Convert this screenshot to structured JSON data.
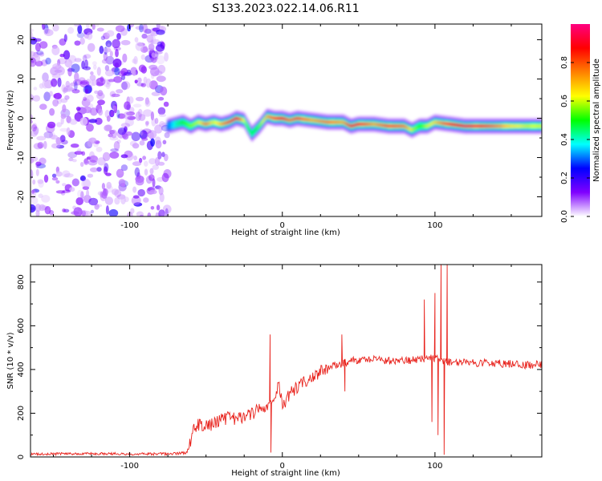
{
  "title": "S133.2023.022.14.06.R11",
  "chart_data": [
    {
      "type": "heatmap",
      "xlabel": "Height of straight line (km)",
      "ylabel": "Frequency (Hz)",
      "xlim": [
        -165,
        170
      ],
      "ylim": [
        -25,
        24
      ],
      "xticks": [
        -100,
        0,
        100
      ],
      "yticks": [
        -20,
        -10,
        0,
        10,
        20
      ],
      "colorbar": {
        "label": "Normalized spectral amplitude",
        "range": [
          0,
          1
        ],
        "ticks": [
          0.0,
          0.2,
          0.4,
          0.6,
          0.8
        ],
        "tick_labels": [
          "0.0",
          "0.2",
          "0.4",
          "0.6",
          "0.8"
        ],
        "colormap": [
          "#ffffff",
          "#8000ff",
          "#0000ff",
          "#00ffff",
          "#00ff00",
          "#ffff00",
          "#ff8000",
          "#ff0000",
          "#ff0080"
        ]
      },
      "noise_region": {
        "x_range": [
          -165,
          -75
        ],
        "y_range": [
          -25,
          24
        ],
        "amplitude": 0.2
      },
      "ridge": {
        "x": [
          -75,
          -70,
          -65,
          -60,
          -55,
          -50,
          -45,
          -40,
          -35,
          -30,
          -25,
          -20,
          -15,
          -10,
          -5,
          0,
          5,
          10,
          20,
          30,
          40,
          45,
          50,
          60,
          70,
          80,
          85,
          90,
          95,
          100,
          110,
          120,
          130,
          140,
          150,
          160,
          170
        ],
        "frequency": [
          -2,
          -1.5,
          -1,
          -2,
          -1,
          -1.5,
          -1,
          -1.5,
          -1,
          0,
          -0.5,
          -4,
          -2,
          0.5,
          0,
          0,
          -0.5,
          0,
          -0.5,
          -1,
          -1,
          -2,
          -1.5,
          -1.5,
          -2,
          -2,
          -3,
          -2,
          -2,
          -1,
          -1.5,
          -2,
          -2,
          -2,
          -2,
          -2,
          -2
        ],
        "amplitude": [
          0.3,
          0.4,
          0.5,
          0.55,
          0.6,
          0.75,
          0.6,
          0.7,
          0.8,
          0.9,
          0.6,
          0.45,
          0.55,
          0.7,
          0.8,
          0.85,
          0.75,
          0.8,
          0.7,
          0.75,
          0.7,
          0.85,
          0.85,
          0.7,
          0.8,
          0.75,
          0.6,
          0.5,
          0.6,
          0.65,
          0.85,
          0.9,
          0.85,
          0.75,
          0.65,
          0.6,
          0.6
        ]
      }
    },
    {
      "type": "line",
      "xlabel": "Height of straight line (km)",
      "ylabel": "SNR (10 * v/v)",
      "xlim": [
        -165,
        170
      ],
      "ylim": [
        0,
        880
      ],
      "xticks": [
        -100,
        0,
        100
      ],
      "yticks": [
        0,
        200,
        400,
        600,
        800
      ],
      "series": [
        {
          "color": "#e8221c",
          "x": [
            -165,
            -140,
            -110,
            -90,
            -70,
            -62,
            -58,
            -55,
            -50,
            -45,
            -40,
            -35,
            -30,
            -25,
            -20,
            -15,
            -10,
            -5,
            -2,
            0,
            5,
            10,
            20,
            30,
            40,
            45,
            50,
            60,
            70,
            80,
            90,
            95,
            100,
            105,
            108,
            112,
            120,
            130,
            140,
            150,
            160,
            170
          ],
          "y": [
            12,
            15,
            15,
            13,
            15,
            20,
            130,
            150,
            140,
            150,
            170,
            180,
            170,
            185,
            200,
            215,
            230,
            270,
            330,
            230,
            290,
            320,
            370,
            410,
            430,
            440,
            440,
            450,
            440,
            440,
            445,
            450,
            450,
            440,
            435,
            430,
            430,
            430,
            430,
            425,
            420,
            425
          ]
        }
      ],
      "spikes": [
        {
          "x": -8,
          "y": 560
        },
        {
          "x": -7.5,
          "y": 20
        },
        {
          "x": 39,
          "y": 560
        },
        {
          "x": 41,
          "y": 300
        },
        {
          "x": 93,
          "y": 720
        },
        {
          "x": 98,
          "y": 160
        },
        {
          "x": 100,
          "y": 750
        },
        {
          "x": 102,
          "y": 100
        },
        {
          "x": 104,
          "y": 880
        },
        {
          "x": 106,
          "y": 10
        },
        {
          "x": 108,
          "y": 880
        }
      ]
    }
  ]
}
